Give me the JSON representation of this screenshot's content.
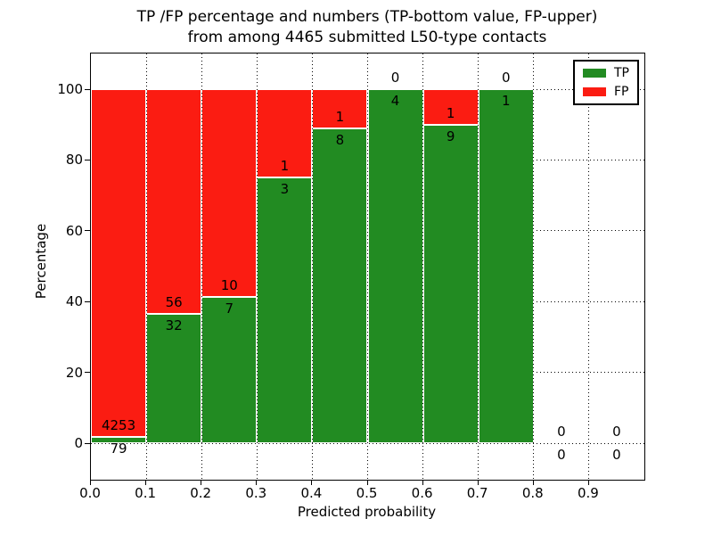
{
  "title": {
    "line1": "TP /FP percentage and numbers (TP-bottom value, FP-upper)",
    "line2": "from among 4465 submitted L50-type contacts"
  },
  "legend": {
    "items": [
      {
        "label": "TP",
        "color": "#228B22"
      },
      {
        "label": "FP",
        "color": "#FB1C12"
      }
    ]
  },
  "axes": {
    "xlabel": "Predicted probability",
    "ylabel": "Percentage",
    "xtick_labels": [
      "0.0",
      "0.1",
      "0.2",
      "0.3",
      "0.4",
      "0.5",
      "0.6",
      "0.7",
      "0.8",
      "0.9"
    ],
    "ytick_labels": [
      "0",
      "20",
      "40",
      "60",
      "80",
      "100"
    ]
  },
  "chart_data": {
    "type": "bar",
    "stacked": true,
    "title": "TP /FP percentage and numbers (TP-bottom value, FP-upper) from among 4465 submitted L50-type contacts",
    "xlabel": "Predicted probability",
    "ylabel": "Percentage",
    "xlim": [
      0.0,
      1.0
    ],
    "ylim": [
      -10,
      110
    ],
    "grid": true,
    "grid_style": "dotted",
    "legend_position": "upper right",
    "total_contacts": 4465,
    "bin_edges": [
      0.0,
      0.1,
      0.2,
      0.3,
      0.4,
      0.5,
      0.6,
      0.7,
      0.8,
      0.9,
      1.0
    ],
    "bin_centers": [
      0.05,
      0.15,
      0.25,
      0.35,
      0.45,
      0.55,
      0.65,
      0.75,
      0.85,
      0.95
    ],
    "series": [
      {
        "name": "TP",
        "color": "#228B22",
        "counts": [
          79,
          32,
          7,
          3,
          8,
          4,
          9,
          1,
          0,
          0
        ],
        "percentages": [
          1.8,
          36.4,
          41.2,
          75.0,
          88.9,
          100.0,
          90.0,
          100.0,
          0.0,
          0.0
        ]
      },
      {
        "name": "FP",
        "color": "#FB1C12",
        "counts": [
          4253,
          56,
          10,
          1,
          1,
          0,
          1,
          0,
          0,
          0
        ],
        "percentages": [
          98.2,
          63.6,
          58.8,
          25.0,
          11.1,
          0.0,
          10.0,
          0.0,
          0.0,
          0.0
        ]
      }
    ]
  }
}
